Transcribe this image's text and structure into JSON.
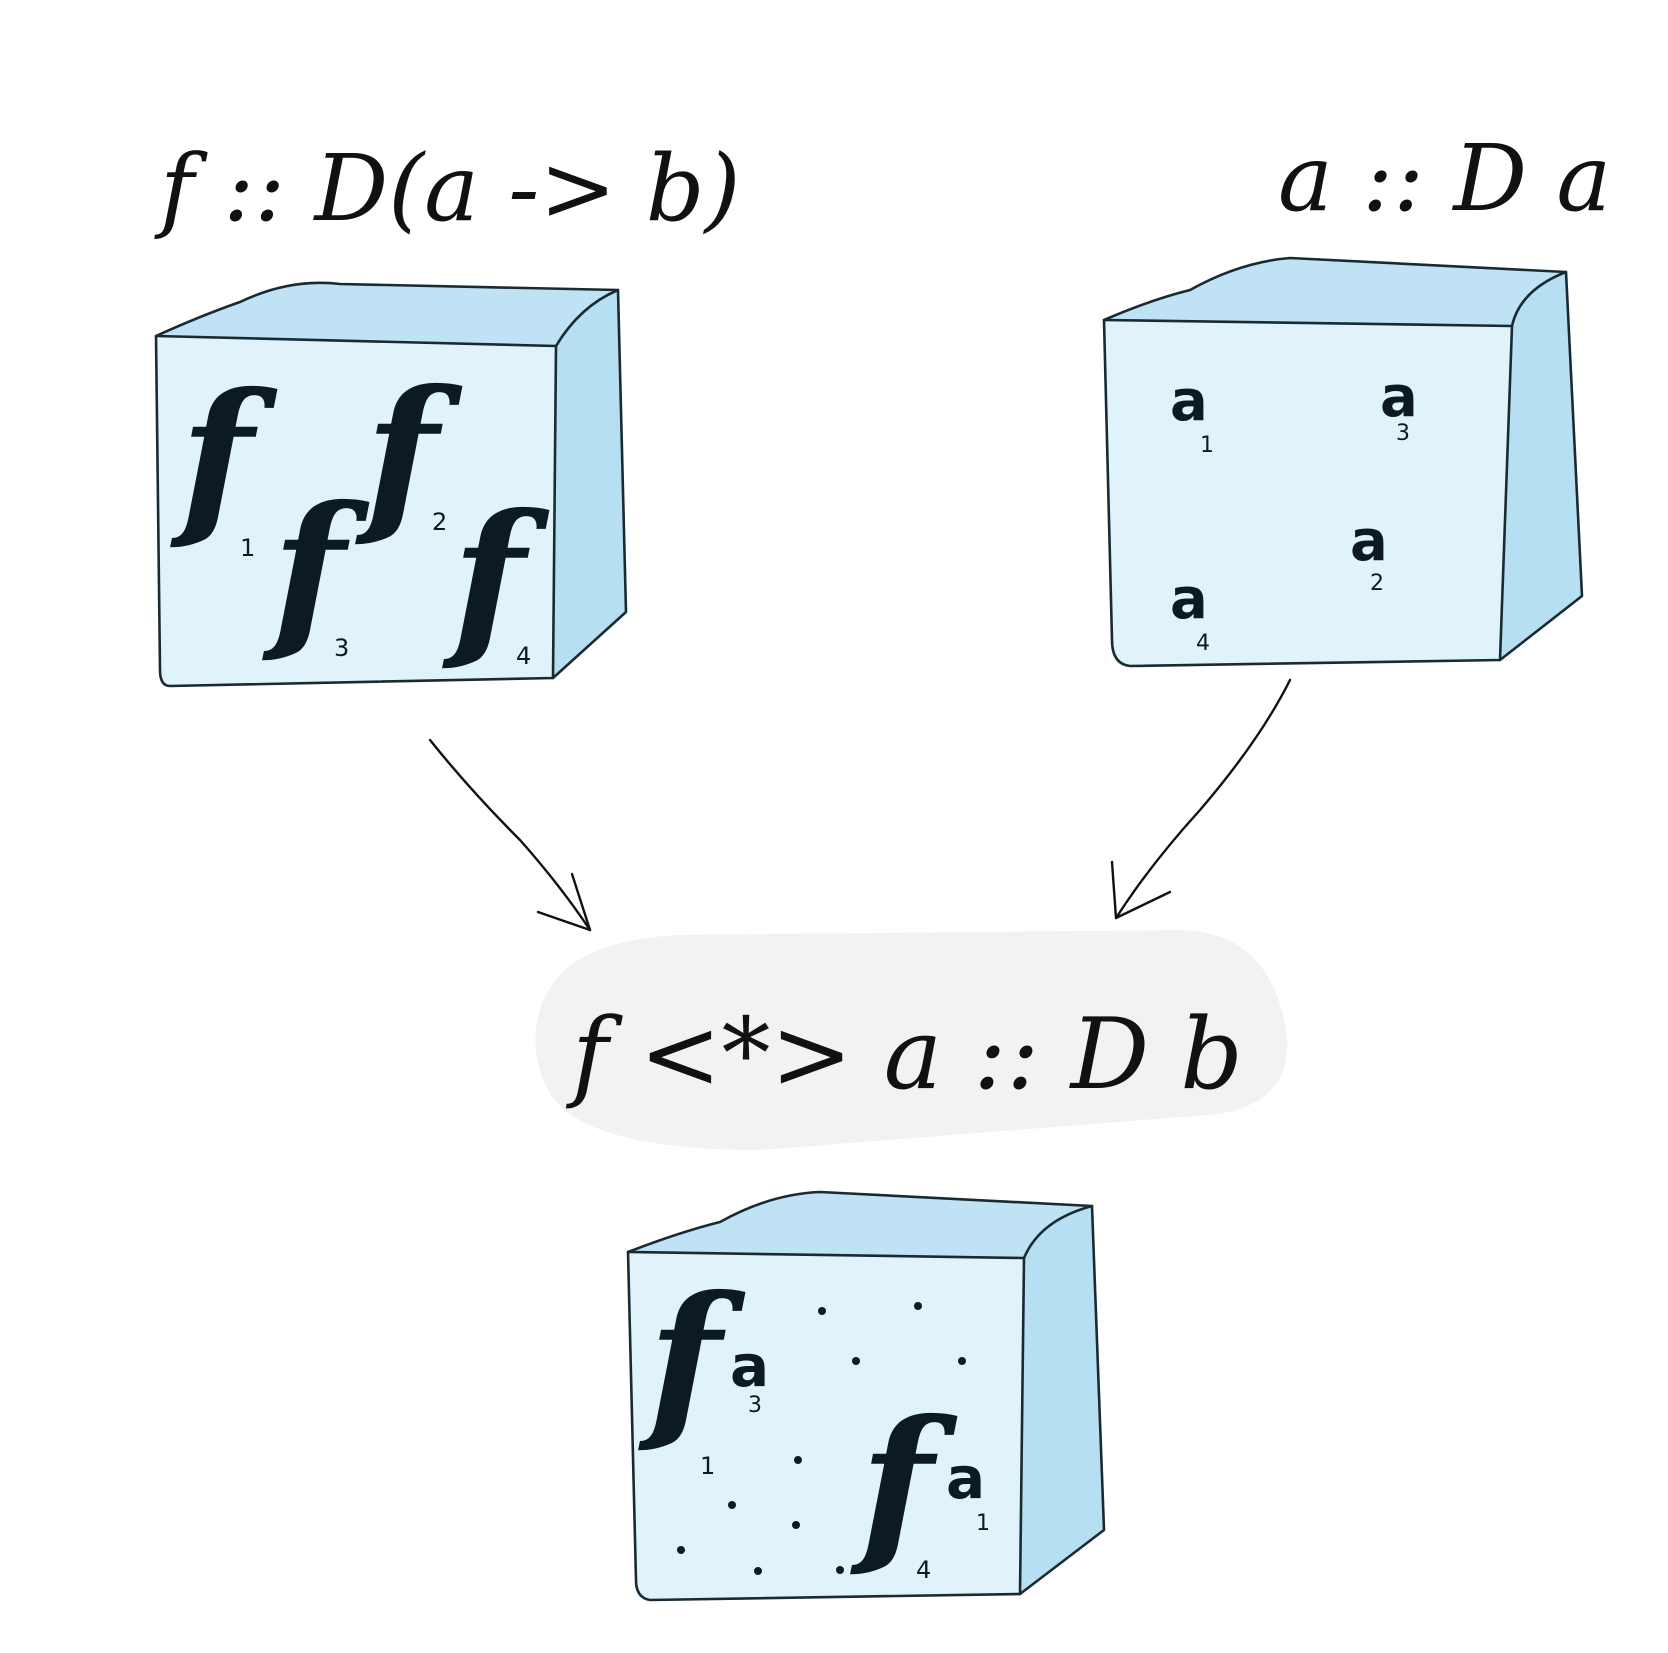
{
  "labels": {
    "f_type": "f :: D(a -> b)",
    "a_type": "a :: D a",
    "result": "f <*> a :: D b"
  },
  "box_f": {
    "items": [
      {
        "glyph": "f",
        "sub": "1"
      },
      {
        "glyph": "f",
        "sub": "3"
      },
      {
        "glyph": "f",
        "sub": "2"
      },
      {
        "glyph": "f",
        "sub": "4"
      }
    ]
  },
  "box_a": {
    "items": [
      {
        "glyph": "a",
        "sub": "1"
      },
      {
        "glyph": "a",
        "sub": "3"
      },
      {
        "glyph": "a",
        "sub": "2"
      },
      {
        "glyph": "a",
        "sub": "4"
      }
    ]
  },
  "box_result": {
    "items": [
      {
        "glyph": "f",
        "sub": "1",
        "arg": "a",
        "arg_sub": "3"
      },
      {
        "glyph": "f",
        "sub": "4",
        "arg": "a",
        "arg_sub": "1"
      }
    ]
  },
  "colors": {
    "box_front": "#e0f2fa",
    "box_side": "#b6e0f2",
    "result_bubble": "#f2f2f2",
    "ink": "#111111"
  }
}
